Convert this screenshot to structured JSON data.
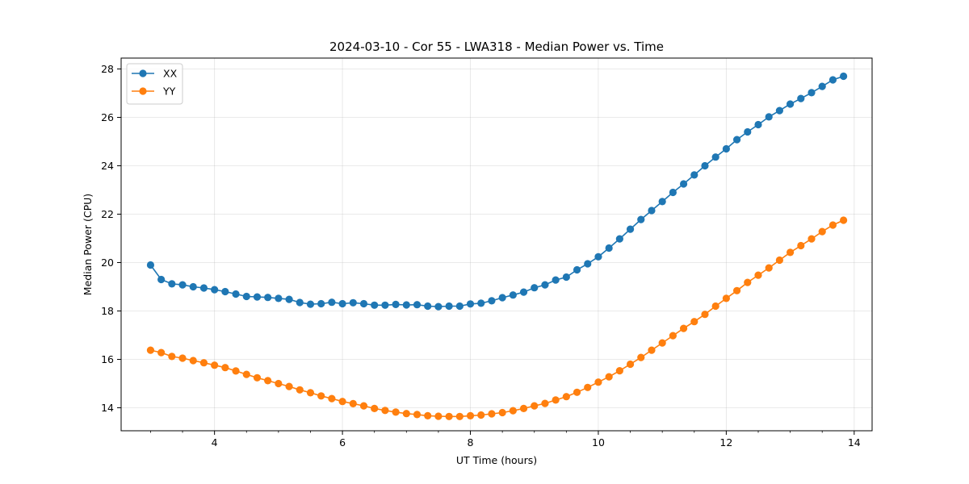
{
  "chart_data": {
    "type": "line",
    "title": "2024-03-10 - Cor 55 - LWA318 - Median Power vs. Time",
    "xlabel": "UT Time (hours)",
    "ylabel": "Median Power (CPU)",
    "xlim": [
      2.54,
      14.28
    ],
    "ylim": [
      13.05,
      28.45
    ],
    "xticks": [
      4,
      6,
      8,
      10,
      12,
      14
    ],
    "yticks": [
      14,
      16,
      18,
      20,
      22,
      24,
      26,
      28
    ],
    "grid": true,
    "legend_position": "top-left",
    "x": [
      3.0,
      3.1667,
      3.3333,
      3.5,
      3.6667,
      3.8333,
      4.0,
      4.1667,
      4.3333,
      4.5,
      4.6667,
      4.8333,
      5.0,
      5.1667,
      5.3333,
      5.5,
      5.6667,
      5.8333,
      6.0,
      6.1667,
      6.3333,
      6.5,
      6.6667,
      6.8333,
      7.0,
      7.1667,
      7.3333,
      7.5,
      7.6667,
      7.8333,
      8.0,
      8.1667,
      8.3333,
      8.5,
      8.6667,
      8.8333,
      9.0,
      9.1667,
      9.3333,
      9.5,
      9.6667,
      9.8333,
      10.0,
      10.1667,
      10.3333,
      10.5,
      10.6667,
      10.8333,
      11.0,
      11.1667,
      11.3333,
      11.5,
      11.6667,
      11.8333,
      12.0,
      12.1667,
      12.3333,
      12.5,
      12.6667,
      12.8333,
      13.0,
      13.1667,
      13.3333,
      13.5,
      13.6667,
      13.8333
    ],
    "series": [
      {
        "name": "XX",
        "color": "#1f77b4",
        "values": [
          19.9,
          19.3,
          19.12,
          19.08,
          19.0,
          18.95,
          18.88,
          18.8,
          18.7,
          18.6,
          18.58,
          18.56,
          18.52,
          18.48,
          18.35,
          18.28,
          18.3,
          18.36,
          18.3,
          18.34,
          18.3,
          18.24,
          18.24,
          18.27,
          18.25,
          18.26,
          18.2,
          18.18,
          18.2,
          18.2,
          18.29,
          18.32,
          18.42,
          18.55,
          18.66,
          18.78,
          18.96,
          19.08,
          19.28,
          19.4,
          19.7,
          19.95,
          20.24,
          20.6,
          20.98,
          21.38,
          21.78,
          22.15,
          22.52,
          22.9,
          23.25,
          23.62,
          24.0,
          24.36,
          24.7,
          25.08,
          25.4,
          25.7,
          26.02,
          26.28,
          26.55,
          26.78,
          27.02,
          27.28,
          27.55,
          27.7
        ]
      },
      {
        "name": "YY",
        "color": "#ff7f0e",
        "values": [
          16.38,
          16.28,
          16.12,
          16.05,
          15.95,
          15.86,
          15.76,
          15.66,
          15.52,
          15.38,
          15.24,
          15.12,
          15.0,
          14.88,
          14.74,
          14.62,
          14.49,
          14.38,
          14.26,
          14.17,
          14.08,
          13.97,
          13.89,
          13.82,
          13.76,
          13.72,
          13.67,
          13.65,
          13.64,
          13.64,
          13.67,
          13.7,
          13.75,
          13.8,
          13.88,
          13.97,
          14.08,
          14.18,
          14.32,
          14.46,
          14.64,
          14.84,
          15.06,
          15.28,
          15.53,
          15.8,
          16.08,
          16.38,
          16.68,
          16.98,
          17.28,
          17.56,
          17.86,
          18.2,
          18.52,
          18.84,
          19.18,
          19.48,
          19.78,
          20.1,
          20.42,
          20.7,
          20.98,
          21.28,
          21.55,
          21.75
        ]
      }
    ]
  }
}
